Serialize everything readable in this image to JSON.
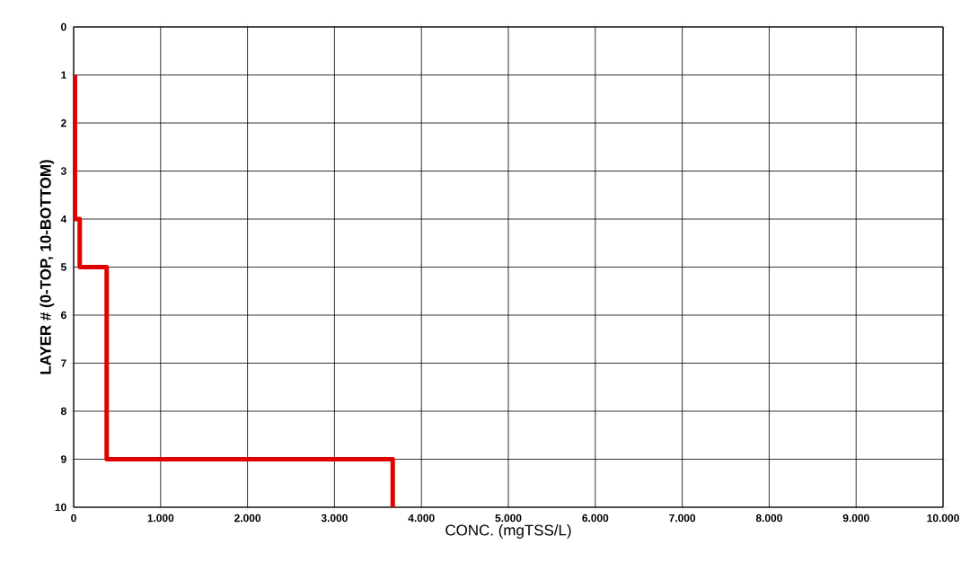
{
  "chart_data": {
    "type": "line",
    "xlabel": "CONC. (mgTSS/L)",
    "ylabel": "LAYER # (0-TOP, 10-BOTTOM)",
    "series": [
      {
        "color": "#e00000",
        "x": [
          15,
          15,
          70,
          70,
          380,
          380,
          3670,
          3670
        ],
        "values": [
          1,
          4,
          4,
          5,
          5,
          9,
          9,
          10
        ]
      }
    ],
    "xlim": [
      0,
      10000
    ],
    "ylim": [
      10,
      0
    ],
    "xticks": [
      0,
      {
        "value": 1000,
        "label": "1.000"
      },
      {
        "value": 2000,
        "label": "2.000"
      },
      {
        "value": 3000,
        "label": "3.000"
      },
      {
        "value": 4000,
        "label": "4.000"
      },
      {
        "value": 5000,
        "label": "5.000"
      },
      {
        "value": 6000,
        "label": "6.000"
      },
      {
        "value": 7000,
        "label": "7.000"
      },
      {
        "value": 8000,
        "label": "8.000"
      },
      {
        "value": 9000,
        "label": "9.000"
      },
      {
        "value": 10000,
        "label": "10.000"
      }
    ],
    "yticks": [
      0,
      1,
      2,
      3,
      4,
      5,
      6,
      7,
      8,
      9,
      10
    ],
    "grid": true
  }
}
